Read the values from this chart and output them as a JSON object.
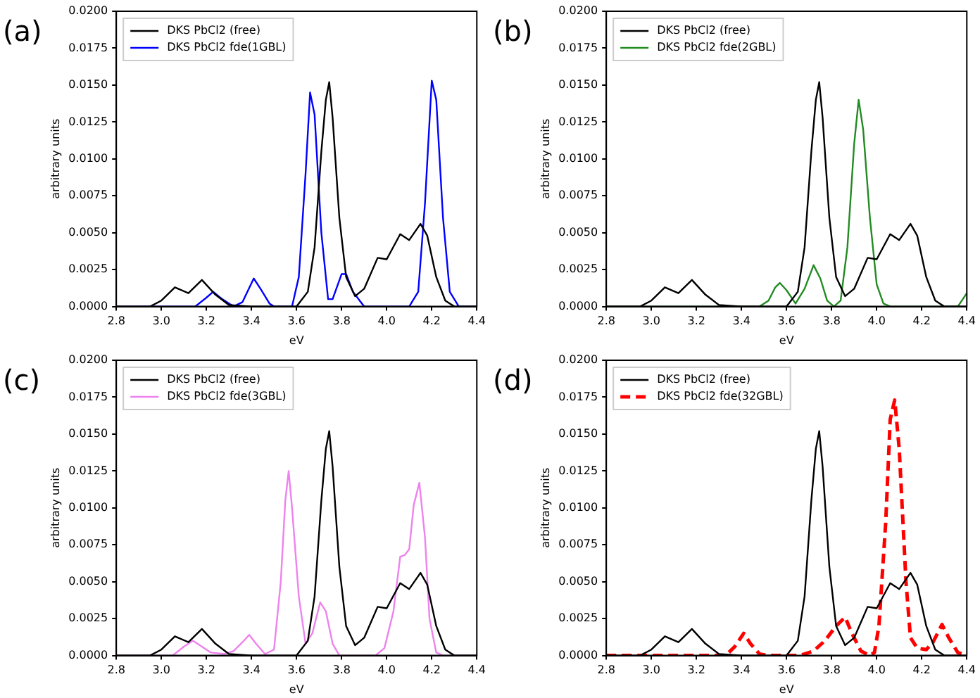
{
  "chart_data": [
    {
      "type": "line",
      "xlabel": "eV",
      "ylabel": "arbitrary units",
      "annotations": [
        "(a)"
      ],
      "legend": "top left",
      "grid": false,
      "xlim": [
        2.8,
        4.4
      ],
      "xticks": [
        {
          "value": 2.8,
          "label": "2.8"
        },
        {
          "value": 3.0,
          "label": "3.0"
        },
        {
          "value": 3.2,
          "label": "3.2"
        },
        {
          "value": 3.4,
          "label": "3.4"
        },
        {
          "value": 3.6,
          "label": "3.6"
        },
        {
          "value": 3.8,
          "label": "3.8"
        },
        {
          "value": 4.0,
          "label": "4.0"
        },
        {
          "value": 4.2,
          "label": "4.2"
        },
        {
          "value": 4.4,
          "label": "4.4"
        }
      ],
      "ylim": [
        0,
        0.02
      ],
      "yticks": [
        {
          "value": 0,
          "label": "0.0000"
        },
        {
          "value": 0.0025,
          "label": "0.0025"
        },
        {
          "value": 0.005,
          "label": "0.0050"
        },
        {
          "value": 0.0075,
          "label": "0.0075"
        },
        {
          "value": 0.01,
          "label": "0.0100"
        },
        {
          "value": 0.0125,
          "label": "0.0125"
        },
        {
          "value": 0.015,
          "label": "0.0150"
        },
        {
          "value": 0.0175,
          "label": "0.0175"
        },
        {
          "value": 0.02,
          "label": "0.0200"
        }
      ],
      "series": [
        {
          "name": "DKS PbCl2 (free)",
          "color": "#000000",
          "x": [
            2.8,
            2.95,
            3.0,
            3.06,
            3.12,
            3.18,
            3.24,
            3.3,
            3.4,
            3.6,
            3.65,
            3.68,
            3.71,
            3.73,
            3.745,
            3.76,
            3.79,
            3.82,
            3.86,
            3.9,
            3.96,
            4.0,
            4.06,
            4.1,
            4.15,
            4.18,
            4.22,
            4.26,
            4.3,
            4.4
          ],
          "values": [
            0,
            0,
            0.0004,
            0.0013,
            0.0009,
            0.0018,
            0.0008,
            0.0001,
            0,
            0,
            0.001,
            0.004,
            0.0105,
            0.014,
            0.0152,
            0.0128,
            0.006,
            0.002,
            0.0007,
            0.0012,
            0.0033,
            0.0032,
            0.0049,
            0.0045,
            0.0056,
            0.0048,
            0.002,
            0.0004,
            0,
            0
          ]
        },
        {
          "name": "DKS PbCl2 fde(1GBL)",
          "color": "#0000ff",
          "x": [
            2.8,
            3.15,
            3.2,
            3.23,
            3.27,
            3.32,
            3.36,
            3.41,
            3.44,
            3.48,
            3.5,
            3.58,
            3.61,
            3.64,
            3.66,
            3.68,
            3.71,
            3.74,
            3.76,
            3.8,
            3.82,
            3.85,
            3.9,
            4.1,
            4.14,
            4.17,
            4.2,
            4.22,
            4.25,
            4.28,
            4.32,
            4.4
          ],
          "values": [
            0,
            0,
            0.0006,
            0.001,
            0.0005,
            0,
            0.0003,
            0.0019,
            0.0012,
            0.0002,
            0,
            0,
            0.002,
            0.009,
            0.0145,
            0.013,
            0.005,
            0.0005,
            0.0005,
            0.0022,
            0.0022,
            0.001,
            0,
            0,
            0.001,
            0.007,
            0.0153,
            0.014,
            0.006,
            0.001,
            0,
            0
          ]
        }
      ]
    },
    {
      "type": "line",
      "xlabel": "eV",
      "ylabel": "arbitrary units",
      "annotations": [
        "(b)"
      ],
      "legend": "top left",
      "grid": false,
      "xlim": [
        2.8,
        4.4
      ],
      "xticks": [
        {
          "value": 2.8,
          "label": "2.8"
        },
        {
          "value": 3.0,
          "label": "3.0"
        },
        {
          "value": 3.2,
          "label": "3.2"
        },
        {
          "value": 3.4,
          "label": "3.4"
        },
        {
          "value": 3.6,
          "label": "3.6"
        },
        {
          "value": 3.8,
          "label": "3.8"
        },
        {
          "value": 4.0,
          "label": "4.0"
        },
        {
          "value": 4.2,
          "label": "4.2"
        },
        {
          "value": 4.4,
          "label": "4.4"
        }
      ],
      "ylim": [
        0,
        0.02
      ],
      "yticks": [
        {
          "value": 0,
          "label": "0.0000"
        },
        {
          "value": 0.0025,
          "label": "0.0025"
        },
        {
          "value": 0.005,
          "label": "0.0050"
        },
        {
          "value": 0.0075,
          "label": "0.0075"
        },
        {
          "value": 0.01,
          "label": "0.0100"
        },
        {
          "value": 0.0125,
          "label": "0.0125"
        },
        {
          "value": 0.015,
          "label": "0.0150"
        },
        {
          "value": 0.0175,
          "label": "0.0175"
        },
        {
          "value": 0.02,
          "label": "0.0200"
        }
      ],
      "series": [
        {
          "name": "DKS PbCl2 (free)",
          "color": "#000000",
          "x": [
            2.8,
            2.95,
            3.0,
            3.06,
            3.12,
            3.18,
            3.24,
            3.3,
            3.4,
            3.6,
            3.65,
            3.68,
            3.71,
            3.73,
            3.745,
            3.76,
            3.79,
            3.82,
            3.86,
            3.9,
            3.96,
            4.0,
            4.06,
            4.1,
            4.15,
            4.18,
            4.22,
            4.26,
            4.3,
            4.4
          ],
          "values": [
            0,
            0,
            0.0004,
            0.0013,
            0.0009,
            0.0018,
            0.0008,
            0.0001,
            0,
            0,
            0.001,
            0.004,
            0.0105,
            0.014,
            0.0152,
            0.0128,
            0.006,
            0.002,
            0.0007,
            0.0012,
            0.0033,
            0.0032,
            0.0049,
            0.0045,
            0.0056,
            0.0048,
            0.002,
            0.0004,
            0,
            0
          ]
        },
        {
          "name": "DKS PbCl2 fde(2GBL)",
          "color": "#228b22",
          "x": [
            2.8,
            3.48,
            3.52,
            3.55,
            3.57,
            3.6,
            3.64,
            3.68,
            3.72,
            3.75,
            3.78,
            3.81,
            3.84,
            3.87,
            3.9,
            3.92,
            3.94,
            3.97,
            4.0,
            4.03,
            4.06,
            4.36,
            4.4
          ],
          "values": [
            0,
            0,
            0.0004,
            0.0013,
            0.0016,
            0.0011,
            0.0002,
            0.0012,
            0.0028,
            0.0019,
            0.0004,
            0,
            0.0004,
            0.004,
            0.011,
            0.014,
            0.012,
            0.006,
            0.0015,
            0.0002,
            0,
            0,
            0.0009
          ]
        }
      ]
    },
    {
      "type": "line",
      "xlabel": "eV",
      "ylabel": "arbitrary units",
      "annotations": [
        "(c)"
      ],
      "legend": "top left",
      "grid": false,
      "xlim": [
        2.8,
        4.4
      ],
      "xticks": [
        {
          "value": 2.8,
          "label": "2.8"
        },
        {
          "value": 3.0,
          "label": "3.0"
        },
        {
          "value": 3.2,
          "label": "3.2"
        },
        {
          "value": 3.4,
          "label": "3.4"
        },
        {
          "value": 3.6,
          "label": "3.6"
        },
        {
          "value": 3.8,
          "label": "3.8"
        },
        {
          "value": 4.0,
          "label": "4.0"
        },
        {
          "value": 4.2,
          "label": "4.2"
        },
        {
          "value": 4.4,
          "label": "4.4"
        }
      ],
      "ylim": [
        0,
        0.02
      ],
      "yticks": [
        {
          "value": 0,
          "label": "0.0000"
        },
        {
          "value": 0.0025,
          "label": "0.0025"
        },
        {
          "value": 0.005,
          "label": "0.0050"
        },
        {
          "value": 0.0075,
          "label": "0.0075"
        },
        {
          "value": 0.01,
          "label": "0.0100"
        },
        {
          "value": 0.0125,
          "label": "0.0125"
        },
        {
          "value": 0.015,
          "label": "0.0150"
        },
        {
          "value": 0.0175,
          "label": "0.0175"
        },
        {
          "value": 0.02,
          "label": "0.0200"
        }
      ],
      "series": [
        {
          "name": "DKS PbCl2 (free)",
          "color": "#000000",
          "x": [
            2.8,
            2.95,
            3.0,
            3.06,
            3.12,
            3.18,
            3.24,
            3.3,
            3.4,
            3.6,
            3.65,
            3.68,
            3.71,
            3.73,
            3.745,
            3.76,
            3.79,
            3.82,
            3.86,
            3.9,
            3.96,
            4.0,
            4.06,
            4.1,
            4.15,
            4.18,
            4.22,
            4.26,
            4.3,
            4.4
          ],
          "values": [
            0,
            0,
            0.0004,
            0.0013,
            0.0009,
            0.0018,
            0.0008,
            0.0001,
            0,
            0,
            0.001,
            0.004,
            0.0105,
            0.014,
            0.0152,
            0.0128,
            0.006,
            0.002,
            0.0007,
            0.0012,
            0.0033,
            0.0032,
            0.0049,
            0.0045,
            0.0056,
            0.0048,
            0.002,
            0.0004,
            0,
            0
          ]
        },
        {
          "name": "DKS PbCl2 fde(3GBL)",
          "color": "#ee82ee",
          "x": [
            2.8,
            3.05,
            3.1,
            3.14,
            3.18,
            3.22,
            3.28,
            3.32,
            3.36,
            3.39,
            3.42,
            3.46,
            3.5,
            3.53,
            3.55,
            3.565,
            3.58,
            3.61,
            3.64,
            3.67,
            3.705,
            3.73,
            3.76,
            3.79,
            3.95,
            3.99,
            4.03,
            4.06,
            4.08,
            4.1,
            4.12,
            4.145,
            4.17,
            4.19,
            4.22,
            4.25,
            4.4
          ],
          "values": [
            0,
            0,
            0.0006,
            0.001,
            0.0006,
            0.0002,
            0.0001,
            0.0003,
            0.0009,
            0.0014,
            0.0008,
            0.0001,
            0.0004,
            0.005,
            0.0105,
            0.0125,
            0.01,
            0.004,
            0.0008,
            0.0015,
            0.0036,
            0.003,
            0.0008,
            0,
            0,
            0.0005,
            0.003,
            0.0067,
            0.0068,
            0.0072,
            0.0102,
            0.0117,
            0.008,
            0.0025,
            0.0002,
            0,
            0
          ]
        }
      ]
    },
    {
      "type": "line",
      "xlabel": "eV",
      "ylabel": "arbitrary units",
      "annotations": [
        "(d)"
      ],
      "legend": "top left",
      "grid": false,
      "xlim": [
        2.8,
        4.4
      ],
      "xticks": [
        {
          "value": 2.8,
          "label": "2.8"
        },
        {
          "value": 3.0,
          "label": "3.0"
        },
        {
          "value": 3.2,
          "label": "3.2"
        },
        {
          "value": 3.4,
          "label": "3.4"
        },
        {
          "value": 3.6,
          "label": "3.6"
        },
        {
          "value": 3.8,
          "label": "3.8"
        },
        {
          "value": 4.0,
          "label": "4.0"
        },
        {
          "value": 4.2,
          "label": "4.2"
        },
        {
          "value": 4.4,
          "label": "4.4"
        }
      ],
      "ylim": [
        0,
        0.02
      ],
      "yticks": [
        {
          "value": 0,
          "label": "0.0000"
        },
        {
          "value": 0.0025,
          "label": "0.0025"
        },
        {
          "value": 0.005,
          "label": "0.0050"
        },
        {
          "value": 0.0075,
          "label": "0.0075"
        },
        {
          "value": 0.01,
          "label": "0.0100"
        },
        {
          "value": 0.0125,
          "label": "0.0125"
        },
        {
          "value": 0.015,
          "label": "0.0150"
        },
        {
          "value": 0.0175,
          "label": "0.0175"
        },
        {
          "value": 0.02,
          "label": "0.0200"
        }
      ],
      "series": [
        {
          "name": "DKS PbCl2 (free)",
          "color": "#000000",
          "x": [
            2.8,
            2.95,
            3.0,
            3.06,
            3.12,
            3.18,
            3.24,
            3.3,
            3.4,
            3.6,
            3.65,
            3.68,
            3.71,
            3.73,
            3.745,
            3.76,
            3.79,
            3.82,
            3.86,
            3.9,
            3.96,
            4.0,
            4.06,
            4.1,
            4.15,
            4.18,
            4.22,
            4.26,
            4.3,
            4.4
          ],
          "values": [
            0,
            0,
            0.0004,
            0.0013,
            0.0009,
            0.0018,
            0.0008,
            0.0001,
            0,
            0,
            0.001,
            0.004,
            0.0105,
            0.014,
            0.0152,
            0.0128,
            0.006,
            0.002,
            0.0007,
            0.0012,
            0.0033,
            0.0032,
            0.0049,
            0.0045,
            0.0056,
            0.0048,
            0.002,
            0.0004,
            0,
            0
          ]
        },
        {
          "name": "DKS PbCl2 fde(32GBL)",
          "color": "#ff0000",
          "line_style": "dashed",
          "x": [
            2.8,
            3.33,
            3.37,
            3.41,
            3.44,
            3.48,
            3.52,
            3.66,
            3.72,
            3.77,
            3.82,
            3.86,
            3.89,
            3.93,
            3.97,
            3.99,
            4.01,
            4.04,
            4.06,
            4.08,
            4.1,
            4.13,
            4.15,
            4.18,
            4.22,
            4.25,
            4.29,
            4.32,
            4.36,
            4.4
          ],
          "values": [
            0,
            0,
            0.0006,
            0.0015,
            0.0008,
            0.0001,
            0,
            0,
            0.0003,
            0.001,
            0.002,
            0.0026,
            0.0015,
            0.0003,
            0,
            0.0002,
            0.002,
            0.009,
            0.016,
            0.0173,
            0.014,
            0.005,
            0.0012,
            0.0005,
            0.0004,
            0.0009,
            0.0021,
            0.0012,
            0.0002,
            0
          ]
        }
      ]
    }
  ]
}
